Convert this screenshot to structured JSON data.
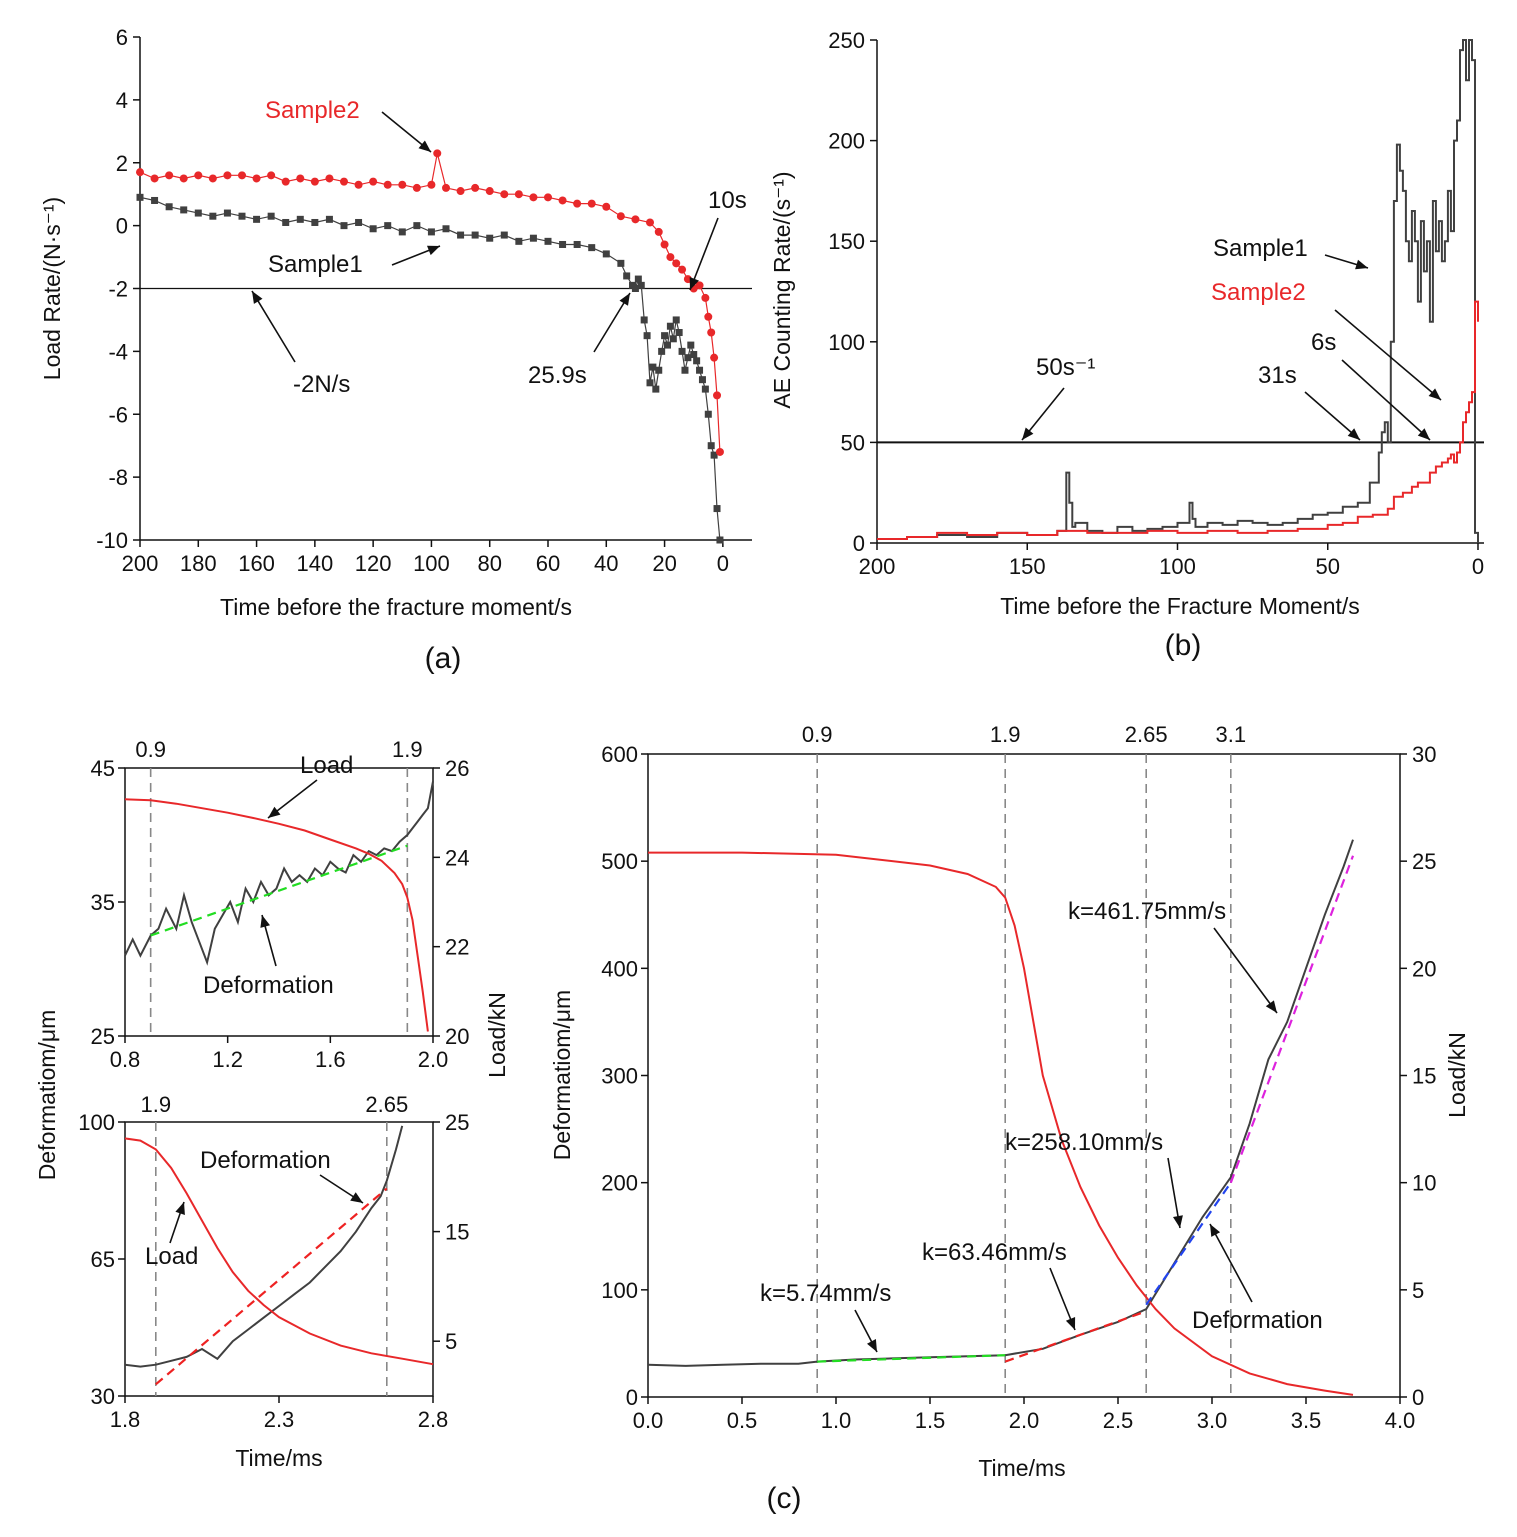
{
  "colors": {
    "sample1": "#404040",
    "sample2": "#e8282a",
    "green_fit": "#22dd22",
    "blue_fit": "#2244ee",
    "magenta_fit": "#dd22dd",
    "red_fit": "#ee2222",
    "axis": "#111111",
    "guide": "#888888"
  },
  "panels": {
    "a": "(a)",
    "b": "(b)",
    "c": "(c)"
  },
  "chart_data": [
    {
      "id": "a",
      "type": "scatter",
      "xlabel": "Time before the fracture moment/s",
      "ylabel": "Load Rate/(N·s⁻¹)",
      "xlim": [
        200,
        -10
      ],
      "ylim": [
        -10,
        6
      ],
      "x_ticks": [
        200,
        180,
        160,
        140,
        120,
        100,
        80,
        60,
        40,
        20,
        0
      ],
      "y_ticks": [
        6,
        4,
        2,
        0,
        -2,
        -4,
        -6,
        -8,
        -10
      ],
      "threshold": -2,
      "annotations": {
        "sample2": "Sample2",
        "sample1": "Sample1",
        "thr": "-2N/s",
        "t1": "25.9s",
        "t2": "10s"
      },
      "series": [
        {
          "name": "Sample1",
          "key": "sample1",
          "marker": "square",
          "x": [
            200,
            195,
            190,
            185,
            180,
            175,
            170,
            165,
            160,
            155,
            150,
            145,
            140,
            135,
            130,
            125,
            120,
            115,
            110,
            105,
            100,
            95,
            90,
            85,
            80,
            75,
            70,
            65,
            60,
            55,
            50,
            45,
            40,
            35,
            33,
            31,
            30,
            29,
            28,
            27,
            26,
            25,
            24,
            23,
            22,
            21,
            20,
            19,
            18,
            17,
            16,
            15,
            14,
            13,
            12,
            11,
            10,
            9,
            8,
            7,
            6,
            5,
            4,
            3,
            2,
            1
          ],
          "y": [
            0.9,
            0.8,
            0.6,
            0.5,
            0.4,
            0.3,
            0.4,
            0.3,
            0.2,
            0.3,
            0.1,
            0.2,
            0.1,
            0.2,
            0.0,
            0.1,
            -0.1,
            0.0,
            -0.2,
            0.0,
            -0.2,
            -0.1,
            -0.3,
            -0.3,
            -0.4,
            -0.3,
            -0.5,
            -0.4,
            -0.5,
            -0.6,
            -0.6,
            -0.7,
            -0.9,
            -1.2,
            -1.6,
            -1.9,
            -2.0,
            -1.7,
            -1.9,
            -3.0,
            -3.5,
            -5.0,
            -4.5,
            -5.2,
            -4.6,
            -4.0,
            -3.5,
            -3.8,
            -3.2,
            -3.6,
            -3.0,
            -3.4,
            -4.0,
            -4.6,
            -4.2,
            -3.8,
            -4.1,
            -4.3,
            -4.6,
            -4.9,
            -5.2,
            -6.0,
            -7.0,
            -7.3,
            -9.0,
            -10.0
          ]
        },
        {
          "name": "Sample2",
          "key": "sample2",
          "marker": "circle",
          "x": [
            200,
            195,
            190,
            185,
            180,
            175,
            170,
            165,
            160,
            155,
            150,
            145,
            140,
            135,
            130,
            125,
            120,
            115,
            110,
            105,
            100,
            98,
            95,
            90,
            85,
            80,
            75,
            70,
            65,
            60,
            55,
            50,
            45,
            40,
            35,
            30,
            25,
            22,
            20,
            18,
            16,
            14,
            12,
            10,
            8,
            6,
            5,
            4,
            3,
            2,
            1
          ],
          "y": [
            1.7,
            1.5,
            1.6,
            1.5,
            1.6,
            1.5,
            1.6,
            1.6,
            1.5,
            1.6,
            1.4,
            1.5,
            1.4,
            1.5,
            1.4,
            1.3,
            1.4,
            1.3,
            1.3,
            1.2,
            1.3,
            2.3,
            1.2,
            1.1,
            1.2,
            1.1,
            1.0,
            1.0,
            0.9,
            0.9,
            0.8,
            0.7,
            0.7,
            0.6,
            0.3,
            0.2,
            0.1,
            -0.2,
            -0.6,
            -1.0,
            -1.2,
            -1.4,
            -1.7,
            -2.0,
            -1.9,
            -2.3,
            -2.9,
            -3.4,
            -4.2,
            -5.4,
            -7.2
          ]
        }
      ]
    },
    {
      "id": "b",
      "type": "line",
      "xlabel": "Time before the Fracture Moment/s",
      "ylabel": "AE Counting Rate/(s⁻¹)",
      "xlim": [
        200,
        -2
      ],
      "ylim": [
        0,
        250
      ],
      "x_ticks": [
        200,
        150,
        100,
        50,
        0
      ],
      "y_ticks": [
        0,
        50,
        100,
        150,
        200,
        250
      ],
      "threshold": 50,
      "annotations": {
        "sample1": "Sample1",
        "sample2": "Sample2",
        "thr": "50s⁻¹",
        "t31": "31s",
        "t6": "6s"
      },
      "series": [
        {
          "name": "Sample1",
          "key": "sample1",
          "x": [
            200,
            190,
            180,
            170,
            160,
            150,
            140,
            137,
            136,
            135,
            134,
            130,
            125,
            120,
            115,
            110,
            105,
            100,
            96,
            95,
            94,
            90,
            85,
            80,
            75,
            70,
            65,
            60,
            55,
            50,
            45,
            40,
            36,
            33,
            32,
            31,
            30,
            29,
            28,
            27,
            26,
            25,
            24,
            23,
            22,
            21,
            20,
            19,
            18,
            17,
            16,
            15,
            14,
            13,
            12,
            11,
            10,
            9,
            8,
            7,
            6,
            5,
            4,
            3,
            2,
            1,
            0
          ],
          "y": [
            2,
            3,
            4,
            3,
            5,
            4,
            6,
            35,
            20,
            8,
            10,
            6,
            5,
            8,
            6,
            7,
            8,
            10,
            20,
            12,
            8,
            10,
            9,
            11,
            10,
            9,
            10,
            12,
            14,
            15,
            18,
            20,
            30,
            45,
            55,
            60,
            50,
            100,
            170,
            198,
            185,
            175,
            150,
            140,
            165,
            150,
            120,
            160,
            135,
            150,
            110,
            170,
            145,
            160,
            140,
            150,
            175,
            155,
            200,
            210,
            245,
            250,
            230,
            250,
            240,
            5,
            0
          ]
        },
        {
          "name": "Sample2",
          "key": "sample2",
          "x": [
            200,
            190,
            180,
            170,
            160,
            150,
            140,
            130,
            120,
            110,
            100,
            90,
            80,
            70,
            60,
            50,
            45,
            40,
            35,
            30,
            28,
            25,
            22,
            20,
            18,
            16,
            14,
            12,
            10,
            9,
            8,
            7,
            6,
            5,
            4,
            3,
            2,
            1,
            0
          ],
          "y": [
            2,
            3,
            5,
            4,
            5,
            4,
            6,
            5,
            5,
            6,
            5,
            6,
            5,
            6,
            7,
            9,
            10,
            13,
            14,
            17,
            23,
            25,
            28,
            30,
            30,
            35,
            38,
            40,
            42,
            44,
            40,
            45,
            50,
            60,
            65,
            70,
            75,
            120,
            110
          ]
        }
      ]
    },
    {
      "id": "c_top",
      "type": "line",
      "xlabel": "",
      "ylabel": "Deformatiom/μm",
      "y2label": "Load/kN",
      "xlim": [
        0.8,
        2.0
      ],
      "ylim": [
        25,
        45
      ],
      "y2lim": [
        20,
        26
      ],
      "x_ticks": [
        0.8,
        1.2,
        1.6,
        2.0
      ],
      "x_tick_labels": [
        "0.8",
        "1.2",
        "1.6",
        "2.0"
      ],
      "y_ticks": [
        25,
        35,
        45
      ],
      "y2_ticks": [
        20,
        22,
        24,
        26
      ],
      "vlines": [
        0.9,
        1.9
      ],
      "vline_labels": [
        "0.9",
        "1.9"
      ],
      "annotations": {
        "load": "Load",
        "deformation": "Deformation"
      },
      "series": [
        {
          "name": "Deformation",
          "key": "sample1",
          "axis": "left",
          "x": [
            0.8,
            0.83,
            0.86,
            0.9,
            0.93,
            0.96,
            1.0,
            1.03,
            1.06,
            1.09,
            1.12,
            1.15,
            1.18,
            1.21,
            1.24,
            1.27,
            1.3,
            1.33,
            1.36,
            1.39,
            1.42,
            1.45,
            1.48,
            1.51,
            1.54,
            1.57,
            1.6,
            1.63,
            1.66,
            1.69,
            1.72,
            1.75,
            1.78,
            1.81,
            1.84,
            1.87,
            1.9,
            1.92,
            1.94,
            1.96,
            1.98,
            2.0
          ],
          "y": [
            31,
            32.2,
            31,
            32.5,
            33,
            34.5,
            33,
            35.5,
            33.5,
            32,
            30.5,
            33,
            34,
            35,
            33.5,
            36,
            35,
            36.5,
            35.5,
            36,
            37.5,
            36.5,
            37,
            36.5,
            37.5,
            37,
            38,
            37.5,
            37.2,
            38.5,
            38,
            38.8,
            38.5,
            39,
            38.8,
            39.5,
            40,
            40.5,
            41,
            41.5,
            42,
            44
          ]
        },
        {
          "name": "Load",
          "key": "sample2",
          "axis": "right",
          "x": [
            0.8,
            0.9,
            1.0,
            1.1,
            1.2,
            1.3,
            1.4,
            1.5,
            1.6,
            1.7,
            1.75,
            1.8,
            1.85,
            1.88,
            1.9,
            1.92,
            1.94,
            1.96,
            1.98
          ],
          "y": [
            25.3,
            25.28,
            25.2,
            25.1,
            25.0,
            24.88,
            24.75,
            24.6,
            24.4,
            24.2,
            24.08,
            23.92,
            23.65,
            23.4,
            23.1,
            22.6,
            21.8,
            21.0,
            20.1
          ]
        },
        {
          "name": "fit",
          "key": "green_fit",
          "axis": "left",
          "dashed": true,
          "x": [
            0.9,
            1.9
          ],
          "y": [
            32.5,
            39.2
          ]
        }
      ]
    },
    {
      "id": "c_bottom",
      "type": "line",
      "xlabel": "Time/ms",
      "ylabel": "",
      "y2label": "",
      "xlim": [
        1.8,
        2.8
      ],
      "ylim": [
        30,
        100
      ],
      "y2lim": [
        0,
        25
      ],
      "x_ticks": [
        1.8,
        2.3,
        2.8
      ],
      "x_tick_labels": [
        "1.8",
        "2.3",
        "2.8"
      ],
      "y_ticks": [
        30,
        65,
        100
      ],
      "y2_ticks": [
        5,
        15,
        25
      ],
      "vlines": [
        1.9,
        2.65
      ],
      "vline_labels": [
        "1.9",
        "2.65"
      ],
      "annotations": {
        "load": "Load",
        "deformation": "Deformation"
      },
      "series": [
        {
          "name": "Deformation",
          "key": "sample1",
          "axis": "left",
          "x": [
            1.8,
            1.85,
            1.9,
            1.95,
            2.0,
            2.05,
            2.1,
            2.15,
            2.2,
            2.25,
            2.3,
            2.35,
            2.4,
            2.45,
            2.5,
            2.55,
            2.6,
            2.63,
            2.65,
            2.68,
            2.7
          ],
          "y": [
            38,
            37.5,
            38,
            39,
            40,
            42,
            39.5,
            44,
            47,
            50,
            53,
            56,
            59,
            63,
            67,
            72,
            78,
            81,
            85,
            93,
            99
          ]
        },
        {
          "name": "Load",
          "key": "sample2",
          "axis": "right",
          "x": [
            1.8,
            1.85,
            1.9,
            1.95,
            2.0,
            2.05,
            2.1,
            2.15,
            2.2,
            2.25,
            2.3,
            2.4,
            2.5,
            2.6,
            2.7,
            2.8
          ],
          "y": [
            23.5,
            23.3,
            22.5,
            20.8,
            18.5,
            16.0,
            13.5,
            11.3,
            9.6,
            8.3,
            7.2,
            5.7,
            4.6,
            3.9,
            3.4,
            2.9
          ]
        },
        {
          "name": "fit",
          "key": "red_fit",
          "axis": "left",
          "dashed": true,
          "x": [
            1.9,
            2.65
          ],
          "y": [
            33,
            83
          ]
        }
      ]
    },
    {
      "id": "c_main",
      "type": "line",
      "xlabel": "Time/ms",
      "ylabel": "Deformatiom/μm",
      "y2label": "Load/kN",
      "xlim": [
        0,
        4
      ],
      "ylim": [
        0,
        600
      ],
      "y2lim": [
        0,
        30
      ],
      "x_ticks": [
        0,
        0.5,
        1.0,
        1.5,
        2.0,
        2.5,
        3.0,
        3.5,
        4.0
      ],
      "x_tick_labels": [
        "0.0",
        "0.5",
        "1.0",
        "1.5",
        "2.0",
        "2.5",
        "3.0",
        "3.5",
        "4.0"
      ],
      "y_ticks": [
        0,
        100,
        200,
        300,
        400,
        500,
        600
      ],
      "y2_ticks": [
        0,
        5,
        10,
        15,
        20,
        25,
        30
      ],
      "vlines": [
        0.9,
        1.9,
        2.65,
        3.1
      ],
      "vline_labels": [
        "0.9",
        "1.9",
        "2.65",
        "3.1"
      ],
      "annotations": {
        "k1": "k=5.74mm/s",
        "k2": "k=63.46mm/s",
        "k3": "k=258.10mm/s",
        "k4": "k=461.75mm/s",
        "deformation": "Deformation"
      },
      "series": [
        {
          "name": "Deformation",
          "key": "sample1",
          "axis": "left",
          "x": [
            0,
            0.2,
            0.4,
            0.6,
            0.8,
            0.9,
            1.1,
            1.3,
            1.5,
            1.7,
            1.9,
            2.1,
            2.3,
            2.5,
            2.65,
            2.8,
            2.95,
            3.1,
            3.2,
            3.3,
            3.4,
            3.5,
            3.6,
            3.7,
            3.75
          ],
          "y": [
            30,
            29,
            30,
            31,
            31,
            33,
            35,
            36,
            37,
            38,
            39,
            45,
            58,
            70,
            82,
            125,
            168,
            205,
            255,
            315,
            350,
            400,
            450,
            495,
            520
          ]
        },
        {
          "name": "Load",
          "key": "sample2",
          "axis": "right",
          "x": [
            0,
            0.5,
            1.0,
            1.5,
            1.7,
            1.85,
            1.9,
            1.95,
            2.0,
            2.05,
            2.1,
            2.2,
            2.3,
            2.4,
            2.5,
            2.6,
            2.7,
            2.8,
            3.0,
            3.2,
            3.4,
            3.6,
            3.75
          ],
          "y": [
            25.4,
            25.4,
            25.3,
            24.8,
            24.4,
            23.8,
            23.3,
            22.0,
            20.0,
            17.5,
            15.0,
            12.0,
            9.8,
            8.0,
            6.5,
            5.2,
            4.1,
            3.2,
            1.9,
            1.1,
            0.6,
            0.3,
            0.1
          ]
        },
        {
          "name": "fit1",
          "key": "green_fit",
          "axis": "left",
          "dashed": true,
          "x": [
            0.9,
            1.9
          ],
          "y": [
            33,
            39
          ]
        },
        {
          "name": "fit2",
          "key": "red_fit",
          "axis": "left",
          "dashed": true,
          "x": [
            1.9,
            2.65
          ],
          "y": [
            33,
            80
          ]
        },
        {
          "name": "fit3",
          "key": "blue_fit",
          "axis": "left",
          "dashed": true,
          "x": [
            2.65,
            3.1
          ],
          "y": [
            86,
            200
          ]
        },
        {
          "name": "fit4",
          "key": "magenta_fit",
          "axis": "left",
          "dashed": true,
          "x": [
            3.1,
            3.75
          ],
          "y": [
            200,
            505
          ]
        }
      ]
    }
  ]
}
